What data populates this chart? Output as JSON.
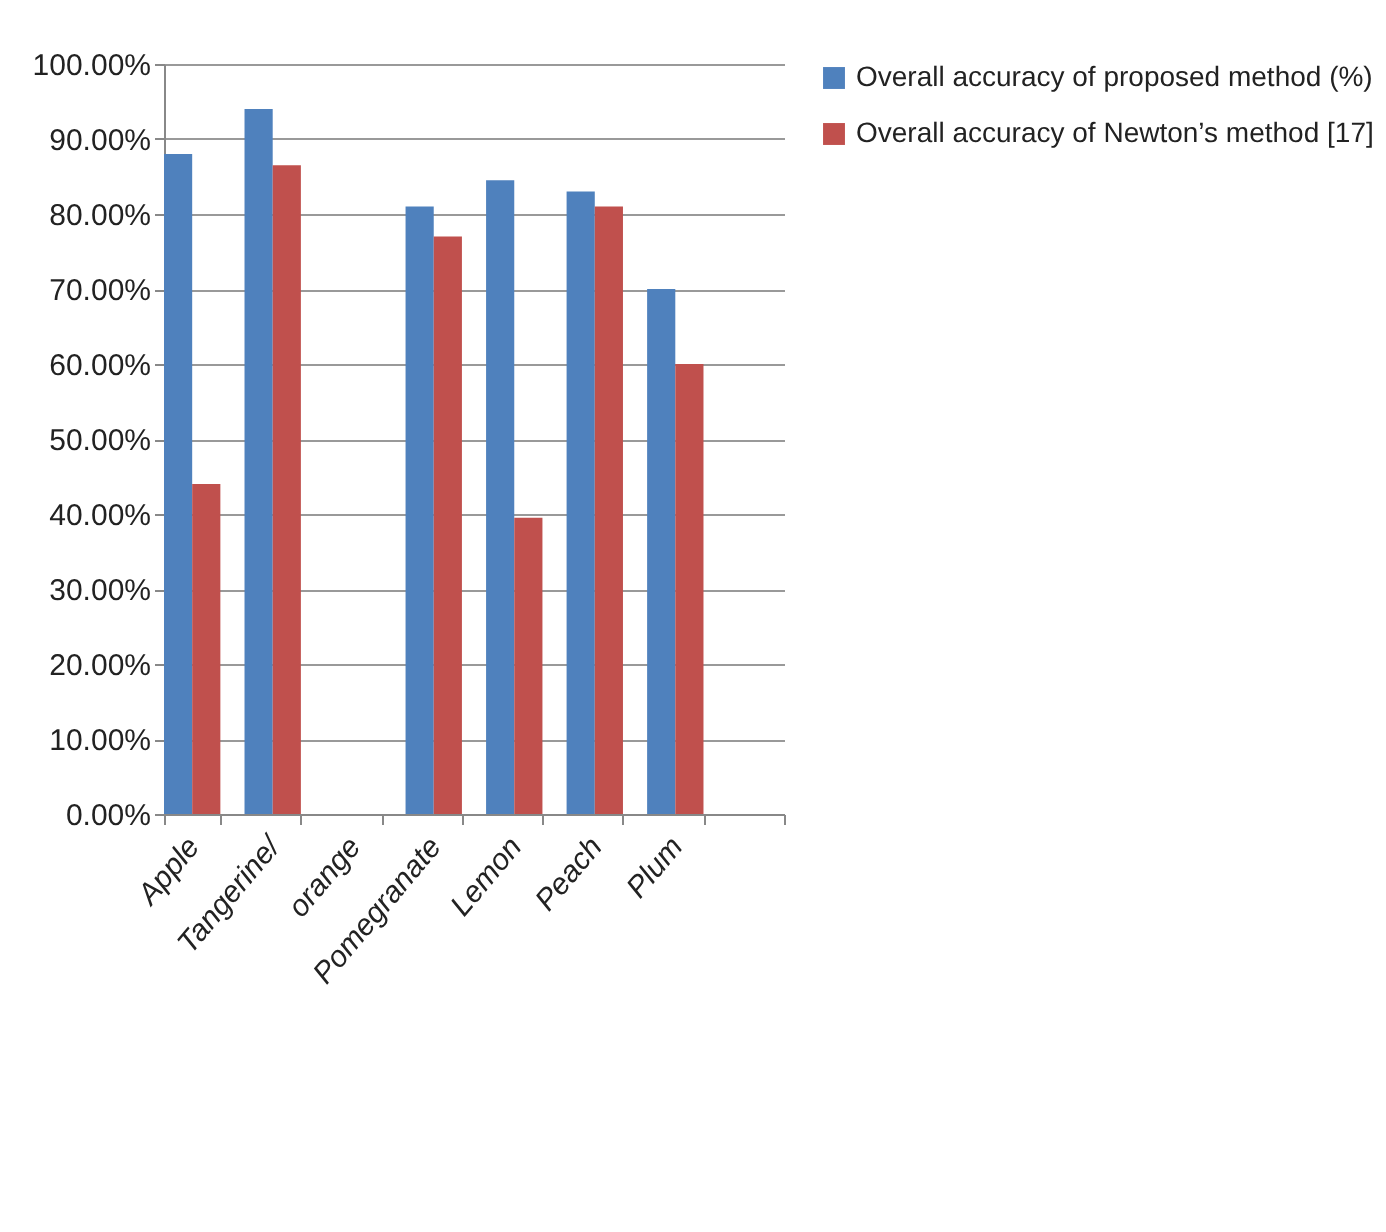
{
  "chart_data": {
    "type": "bar",
    "categories": [
      "Apple",
      "Tangerine/",
      "orange",
      "Pomegranate",
      "Lemon",
      "Peach",
      "Plum",
      null
    ],
    "series": [
      {
        "name": "Overall accuracy of proposed method (%)",
        "color": "#4f81bd",
        "values": [
          88,
          94,
          null,
          81,
          84.5,
          83,
          70,
          null
        ]
      },
      {
        "name": "Overall accuracy of Newton’s method [17]",
        "color": "#c0504d",
        "values": [
          44,
          86.5,
          null,
          77,
          39.5,
          81,
          60,
          null
        ]
      }
    ],
    "ylim": [
      0,
      100
    ],
    "yticks": [
      {
        "value": 0,
        "label": "0.00%"
      },
      {
        "value": 10,
        "label": "10.00%"
      },
      {
        "value": 20,
        "label": "20.00%"
      },
      {
        "value": 30,
        "label": "30.00%"
      },
      {
        "value": 40,
        "label": "40.00%"
      },
      {
        "value": 50,
        "label": "50.00%"
      },
      {
        "value": 60,
        "label": "60.00%"
      },
      {
        "value": 70,
        "label": "70.00%"
      },
      {
        "value": 80,
        "label": "80.00%"
      },
      {
        "value": 90,
        "label": "90.00%"
      },
      {
        "value": 100,
        "label": "100.00%"
      }
    ],
    "grid": "y",
    "legend": "right"
  }
}
